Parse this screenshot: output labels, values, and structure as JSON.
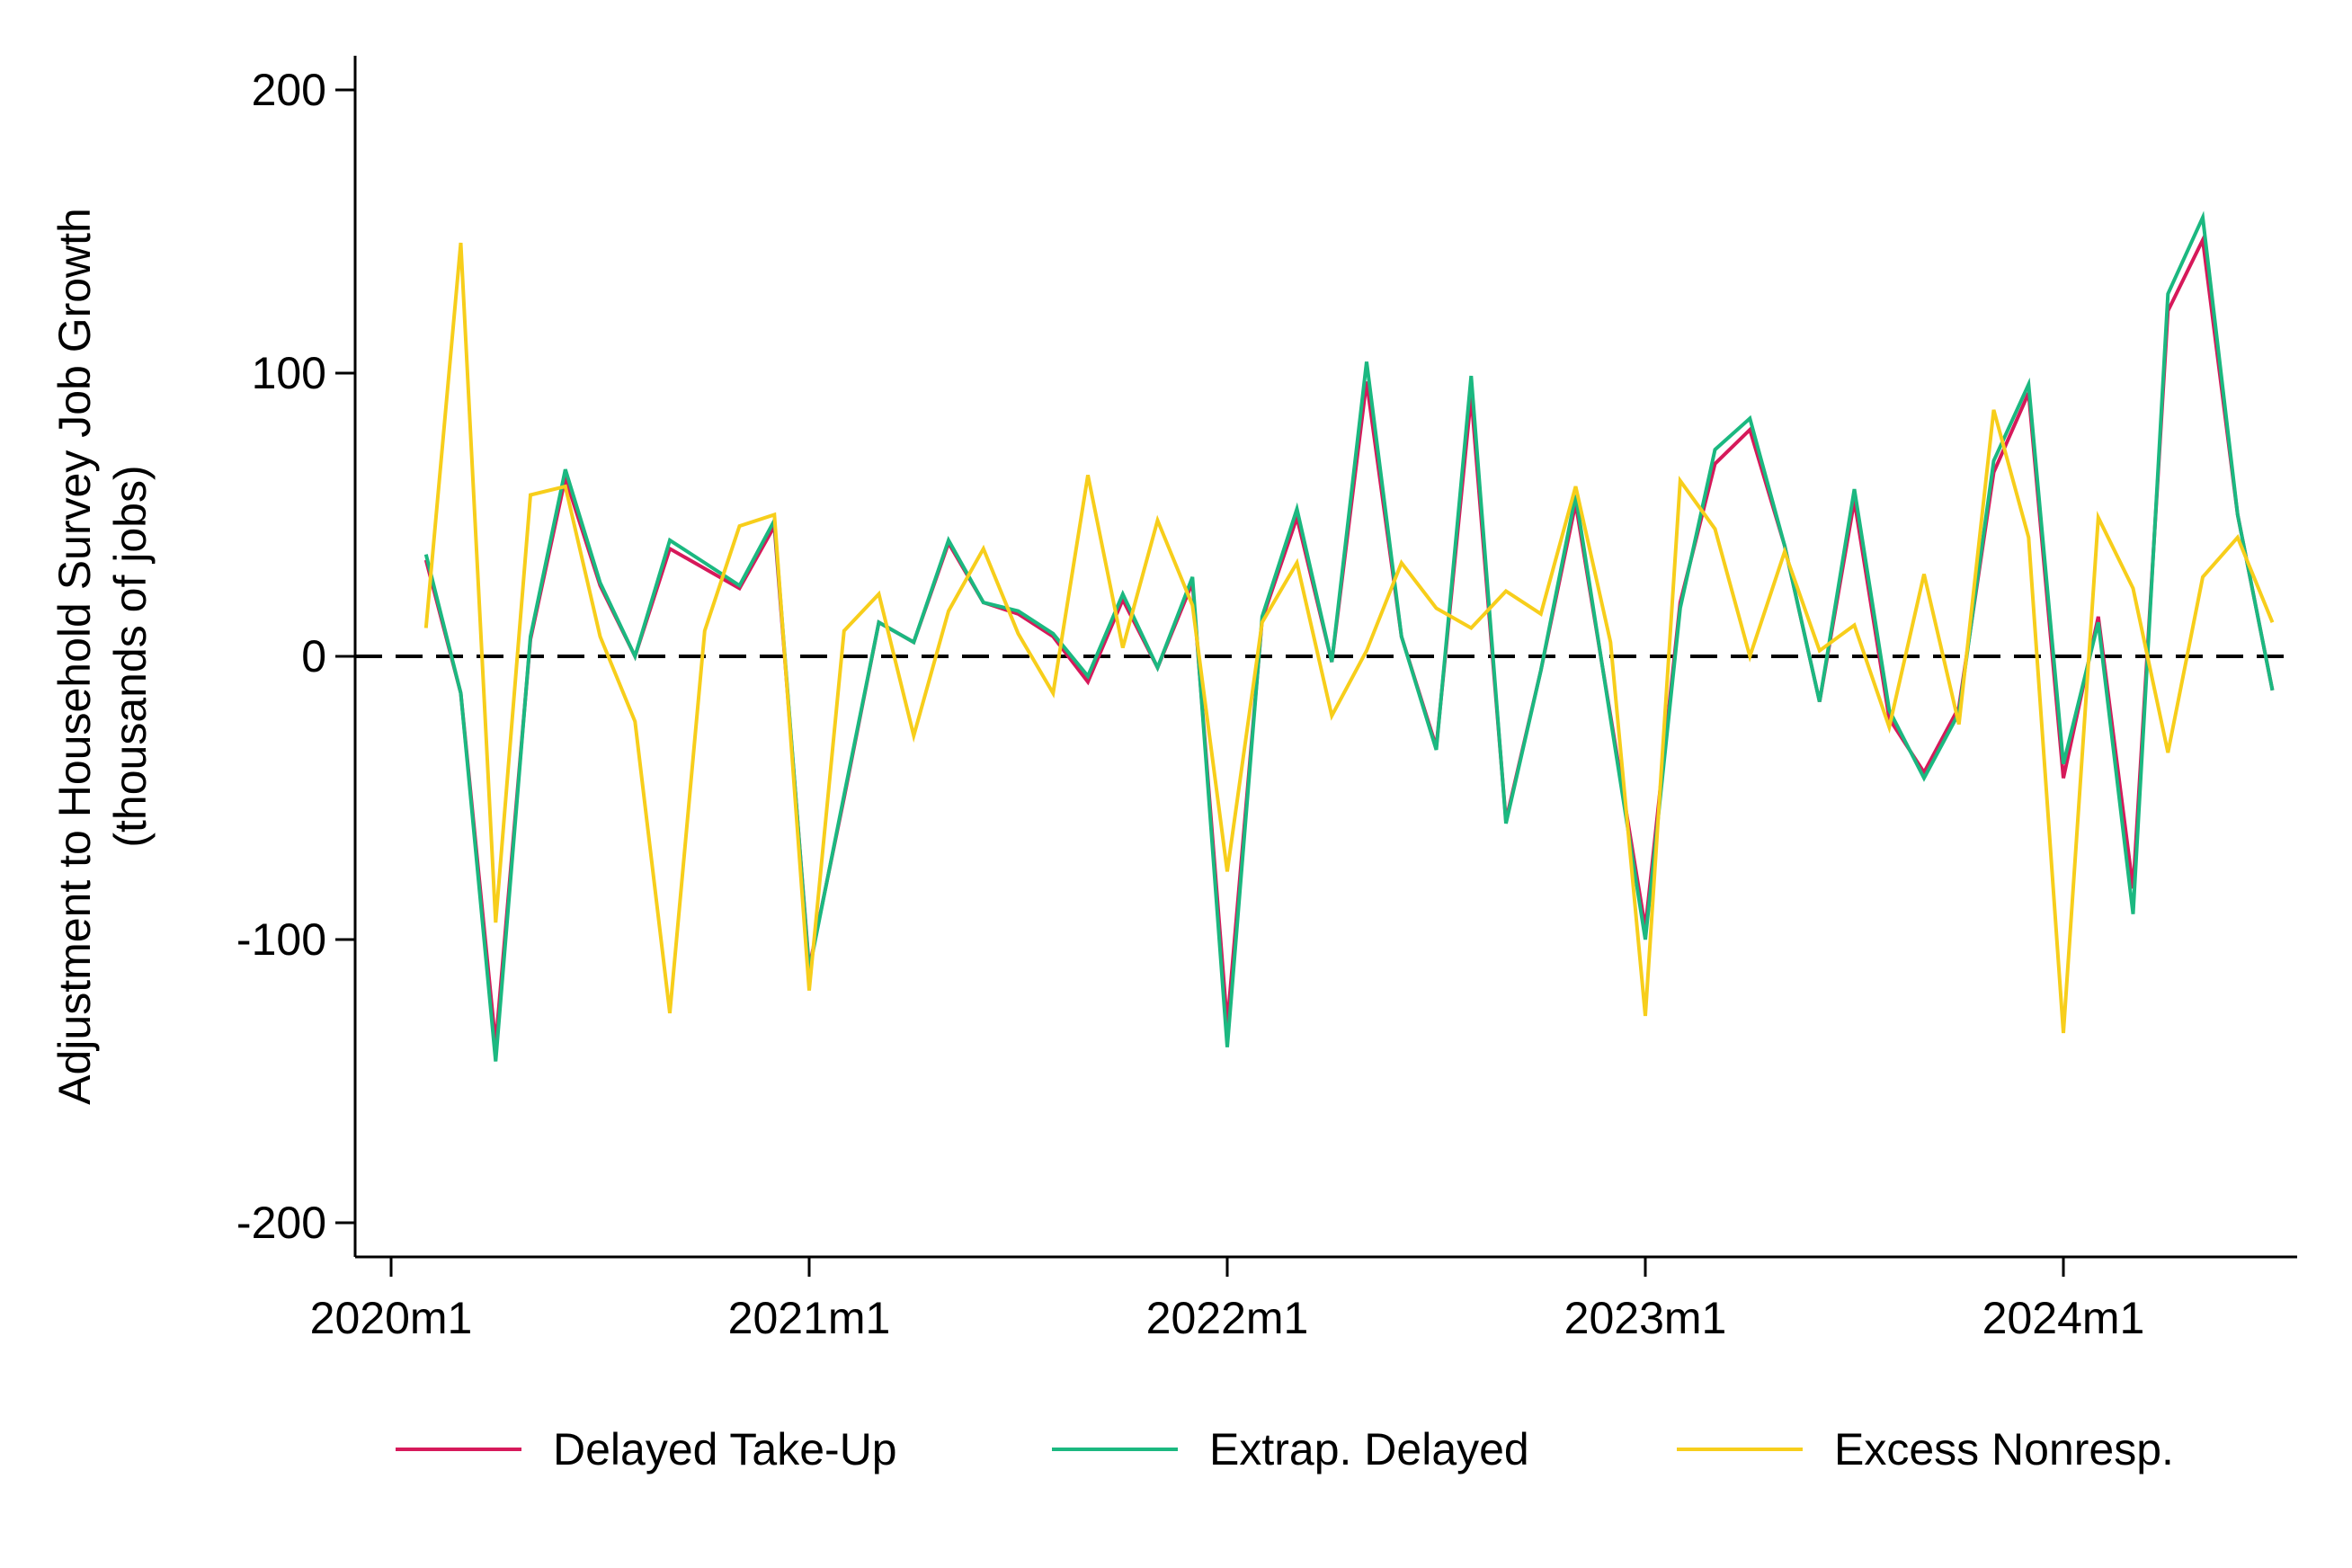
{
  "chart_data": {
    "type": "line",
    "title": "",
    "xlabel": "",
    "ylabel": [
      "Adjustment to Household Survey Job Growth",
      "(thousands of jobs)"
    ],
    "ylim": [
      -210,
      210
    ],
    "yticks": [
      -200,
      -100,
      0,
      100,
      200
    ],
    "xticks": [
      {
        "value": "2020-01",
        "label": "2020m1"
      },
      {
        "value": "2021-01",
        "label": "2021m1"
      },
      {
        "value": "2022-01",
        "label": "2022m1"
      },
      {
        "value": "2023-01",
        "label": "2023m1"
      },
      {
        "value": "2024-01",
        "label": "2024m1"
      }
    ],
    "xlim": [
      "2020-01",
      "2024-08"
    ],
    "reference_line": {
      "y": 0,
      "style": "dashed",
      "color": "#000000"
    },
    "grid": false,
    "legend_position": "bottom",
    "x": [
      "2020-02",
      "2020-03",
      "2020-04",
      "2020-05",
      "2020-06",
      "2020-07",
      "2020-08",
      "2020-09",
      "2020-10",
      "2020-11",
      "2020-12",
      "2021-01",
      "2021-02",
      "2021-03",
      "2021-04",
      "2021-05",
      "2021-06",
      "2021-07",
      "2021-08",
      "2021-09",
      "2021-10",
      "2021-11",
      "2021-12",
      "2022-01",
      "2022-02",
      "2022-03",
      "2022-04",
      "2022-05",
      "2022-06",
      "2022-07",
      "2022-08",
      "2022-09",
      "2022-10",
      "2022-11",
      "2022-12",
      "2023-01",
      "2023-02",
      "2023-03",
      "2023-04",
      "2023-05",
      "2023-06",
      "2023-07",
      "2023-08",
      "2023-09",
      "2023-10",
      "2023-11",
      "2023-12",
      "2024-01",
      "2024-02",
      "2024-03",
      "2024-04",
      "2024-05",
      "2024-06",
      "2024-07"
    ],
    "series": [
      {
        "name": "Delayed Take-Up",
        "color": "#d6195a",
        "values": [
          34,
          -13,
          -137,
          6,
          63,
          25,
          0,
          38,
          31,
          24,
          46,
          -110,
          -50,
          12,
          5,
          40,
          19,
          15,
          7,
          -9,
          20,
          -4,
          26,
          -130,
          13,
          49,
          -2,
          97,
          7,
          -32,
          92,
          -58,
          -5,
          54,
          -21,
          -96,
          19,
          68,
          80,
          39,
          -16,
          55,
          -22,
          -41,
          -18,
          65,
          93,
          -43,
          14,
          -82,
          122,
          147,
          50,
          -12
        ]
      },
      {
        "name": "Extrap. Delayed",
        "color": "#1bb880",
        "values": [
          36,
          -13,
          -143,
          7,
          66,
          26,
          0,
          41,
          33,
          25,
          48,
          -111,
          -49,
          12,
          5,
          41,
          19,
          16,
          8,
          -7,
          22,
          -4,
          28,
          -138,
          14,
          52,
          -2,
          104,
          7,
          -33,
          99,
          -59,
          -5,
          57,
          -22,
          -100,
          17,
          73,
          84,
          39,
          -16,
          59,
          -19,
          -43,
          -20,
          69,
          96,
          -38,
          12,
          -91,
          128,
          155,
          50,
          -12
        ]
      },
      {
        "name": "Excess Nonresp.",
        "color": "#f7ce1b",
        "values": [
          10,
          146,
          -94,
          57,
          60,
          7,
          -23,
          -126,
          9,
          46,
          50,
          -118,
          9,
          22,
          -28,
          16,
          38,
          8,
          -13,
          64,
          3,
          48,
          18,
          -76,
          12,
          33,
          -21,
          2,
          33,
          17,
          10,
          23,
          15,
          60,
          5,
          -127,
          62,
          45,
          0,
          37,
          2,
          11,
          -25,
          29,
          -24,
          87,
          42,
          -133,
          49,
          24,
          -34,
          28,
          42,
          12
        ]
      }
    ]
  }
}
